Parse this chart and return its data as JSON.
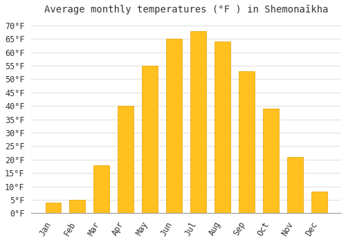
{
  "title": "Average monthly temperatures (°F ) in Shemonaīkha",
  "months": [
    "Jan",
    "Feb",
    "Mar",
    "Apr",
    "May",
    "Jun",
    "Jul",
    "Aug",
    "Sep",
    "Oct",
    "Nov",
    "Dec"
  ],
  "values": [
    4,
    5,
    18,
    40,
    55,
    65,
    68,
    64,
    53,
    39,
    21,
    8
  ],
  "bar_color": "#FFC020",
  "bar_edge_color": "#E8A000",
  "background_color": "#FFFFFF",
  "grid_color": "#DDDDDD",
  "ylim": [
    0,
    72
  ],
  "yticks": [
    0,
    5,
    10,
    15,
    20,
    25,
    30,
    35,
    40,
    45,
    50,
    55,
    60,
    65,
    70
  ],
  "ytick_labels": [
    "0°F",
    "5°F",
    "10°F",
    "15°F",
    "20°F",
    "25°F",
    "30°F",
    "35°F",
    "40°F",
    "45°F",
    "50°F",
    "55°F",
    "60°F",
    "65°F",
    "70°F"
  ],
  "title_fontsize": 10,
  "tick_fontsize": 8.5,
  "bar_width": 0.65
}
